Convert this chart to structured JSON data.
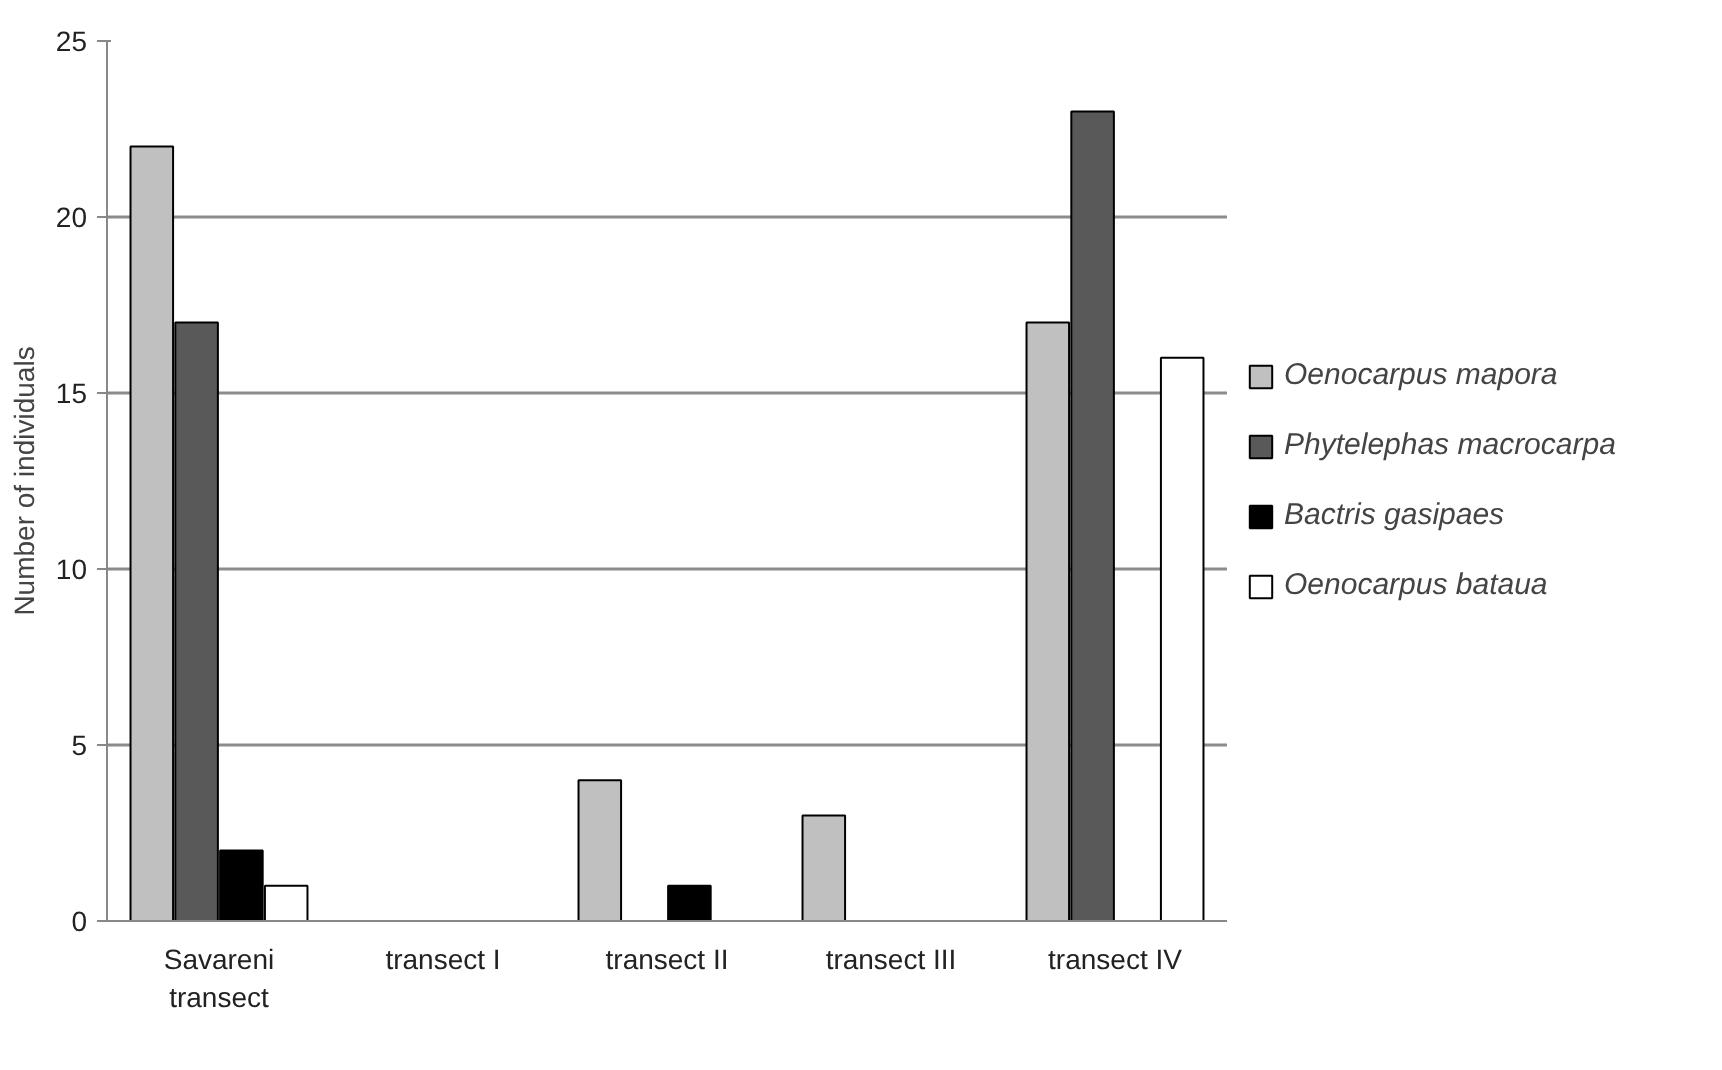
{
  "chart_data": {
    "type": "bar",
    "ylabel": "Number of individuals",
    "categories": [
      "Savareni transect",
      "transect I",
      "transect II",
      "transect III",
      "transect IV"
    ],
    "series": [
      {
        "name": "Oenocarpus mapora",
        "color": "#c0c0c0",
        "values": [
          22,
          0,
          4,
          3,
          17
        ]
      },
      {
        "name": "Phytelephas macrocarpa",
        "color": "#595959",
        "values": [
          17,
          0,
          0,
          0,
          23
        ]
      },
      {
        "name": "Bactris gasipaes",
        "color": "#000000",
        "values": [
          2,
          0,
          1,
          0,
          0
        ]
      },
      {
        "name": "Oenocarpus bataua",
        "color": "#ffffff",
        "values": [
          1,
          0,
          0,
          0,
          16
        ]
      }
    ],
    "ylim": [
      0,
      25
    ],
    "yticks": [
      0,
      5,
      10,
      15,
      20,
      25
    ],
    "grid": "y",
    "legend": "right"
  }
}
